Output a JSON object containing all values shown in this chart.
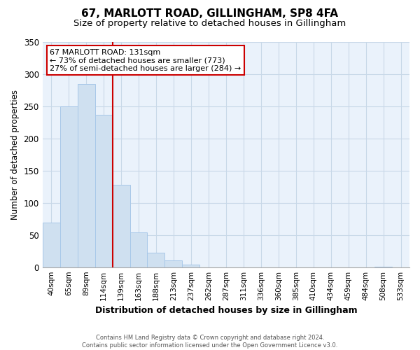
{
  "title1": "67, MARLOTT ROAD, GILLINGHAM, SP8 4FA",
  "title2": "Size of property relative to detached houses in Gillingham",
  "xlabel": "Distribution of detached houses by size in Gillingham",
  "ylabel": "Number of detached properties",
  "bar_labels": [
    "40sqm",
    "65sqm",
    "89sqm",
    "114sqm",
    "139sqm",
    "163sqm",
    "188sqm",
    "213sqm",
    "237sqm",
    "262sqm",
    "287sqm",
    "311sqm",
    "336sqm",
    "360sqm",
    "385sqm",
    "410sqm",
    "434sqm",
    "459sqm",
    "484sqm",
    "508sqm",
    "533sqm"
  ],
  "bar_values": [
    69,
    250,
    285,
    237,
    128,
    54,
    22,
    11,
    4,
    0,
    0,
    0,
    0,
    0,
    0,
    0,
    0,
    0,
    0,
    1,
    0
  ],
  "bar_color": "#cfe0f0",
  "bar_edge_color": "#a8c8e8",
  "vline_color": "#cc0000",
  "vline_x_index": 4,
  "annotation_title": "67 MARLOTT ROAD: 131sqm",
  "annotation_line1": "← 73% of detached houses are smaller (773)",
  "annotation_line2": "27% of semi-detached houses are larger (284) →",
  "annotation_box_color": "#ffffff",
  "annotation_box_edge": "#cc0000",
  "ylim": [
    0,
    350
  ],
  "yticks": [
    0,
    50,
    100,
    150,
    200,
    250,
    300,
    350
  ],
  "footer1": "Contains HM Land Registry data © Crown copyright and database right 2024.",
  "footer2": "Contains public sector information licensed under the Open Government Licence v3.0.",
  "bg_color": "#ffffff",
  "plot_bg_color": "#eaf2fb",
  "grid_color": "#c8d8e8",
  "title1_fontsize": 11,
  "title2_fontsize": 9.5
}
